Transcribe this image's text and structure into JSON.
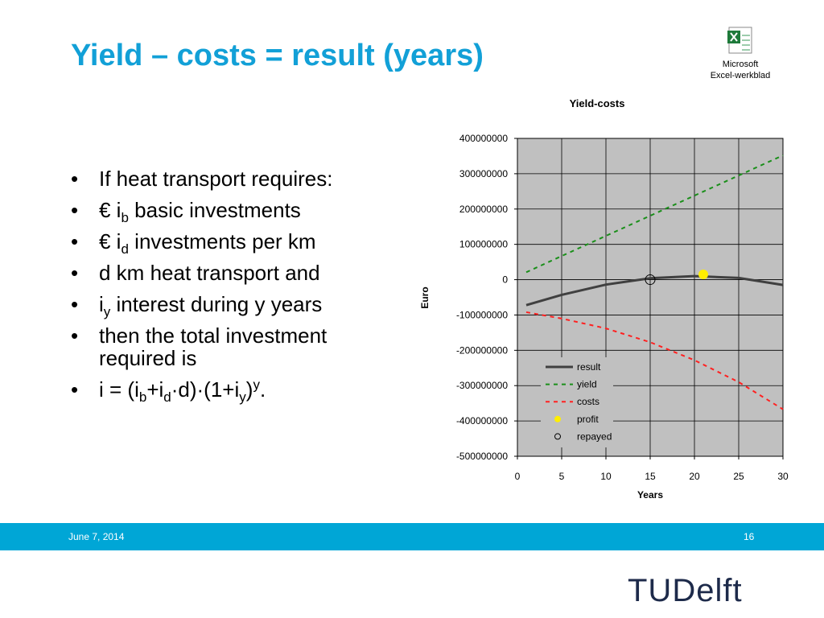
{
  "slide": {
    "title": "Yield – costs = result (years)",
    "bullets": [
      [
        {
          "text": "If heat transport requires:"
        }
      ],
      [
        {
          "text": "€ i"
        },
        {
          "sub": "b"
        },
        {
          "text": " basic investments"
        }
      ],
      [
        {
          "text": "€ i"
        },
        {
          "sub": "d"
        },
        {
          "text": " investments per km"
        }
      ],
      [
        {
          "text": "d km heat transport and"
        }
      ],
      [
        {
          "text": "i"
        },
        {
          "sub": "y"
        },
        {
          "text": " interest during y years"
        }
      ],
      [
        {
          "text": "then the total investment required is"
        }
      ],
      [
        {
          "text": "i = (i"
        },
        {
          "sub": "b"
        },
        {
          "text": "+i"
        },
        {
          "sub": "d"
        },
        {
          "text": "·d)·(1+i"
        },
        {
          "sub": "y"
        },
        {
          "text": ")"
        },
        {
          "sup": "y"
        },
        {
          "text": "."
        }
      ]
    ],
    "icon_label": [
      "Microsoft",
      "Excel-werkblad"
    ],
    "footer": {
      "date": "June 7, 2014",
      "page": "16"
    },
    "logo": "TUDelft"
  },
  "chart_data": {
    "type": "line",
    "title": "Yield-costs",
    "x_label": "Years",
    "y_label": "Euro",
    "x": [
      1,
      5,
      10,
      15,
      20,
      25,
      30
    ],
    "series": [
      {
        "name": "result",
        "color": "#404040",
        "style": "solid",
        "values": [
          -72000000,
          -43000000,
          -14000000,
          4000000,
          10000000,
          5000000,
          -15000000
        ]
      },
      {
        "name": "yield",
        "color": "#1a8f1a",
        "style": "dashed",
        "values": [
          21000000,
          67000000,
          124000000,
          181000000,
          238000000,
          295000000,
          352000000
        ]
      },
      {
        "name": "costs",
        "color": "#ff2020",
        "style": "dashed",
        "values": [
          -92000000,
          -110000000,
          -138000000,
          -177000000,
          -228000000,
          -290000000,
          -367000000
        ]
      },
      {
        "name": "profit",
        "color": "#ffee00",
        "style": "marker",
        "x": [
          21
        ],
        "values": [
          15000000
        ]
      },
      {
        "name": "repayed",
        "color": "#000000",
        "style": "hollow-marker",
        "x": [
          15
        ],
        "values": [
          0
        ]
      }
    ],
    "xlim": [
      0,
      30
    ],
    "xticks": [
      0,
      5,
      10,
      15,
      20,
      25,
      30
    ],
    "ylim": [
      -500000000,
      400000000
    ],
    "yticks": [
      -500000000,
      -400000000,
      -300000000,
      -200000000,
      -100000000,
      0,
      100000000,
      200000000,
      300000000,
      400000000
    ],
    "grid": true,
    "plot_background": "#c0c0c0"
  }
}
